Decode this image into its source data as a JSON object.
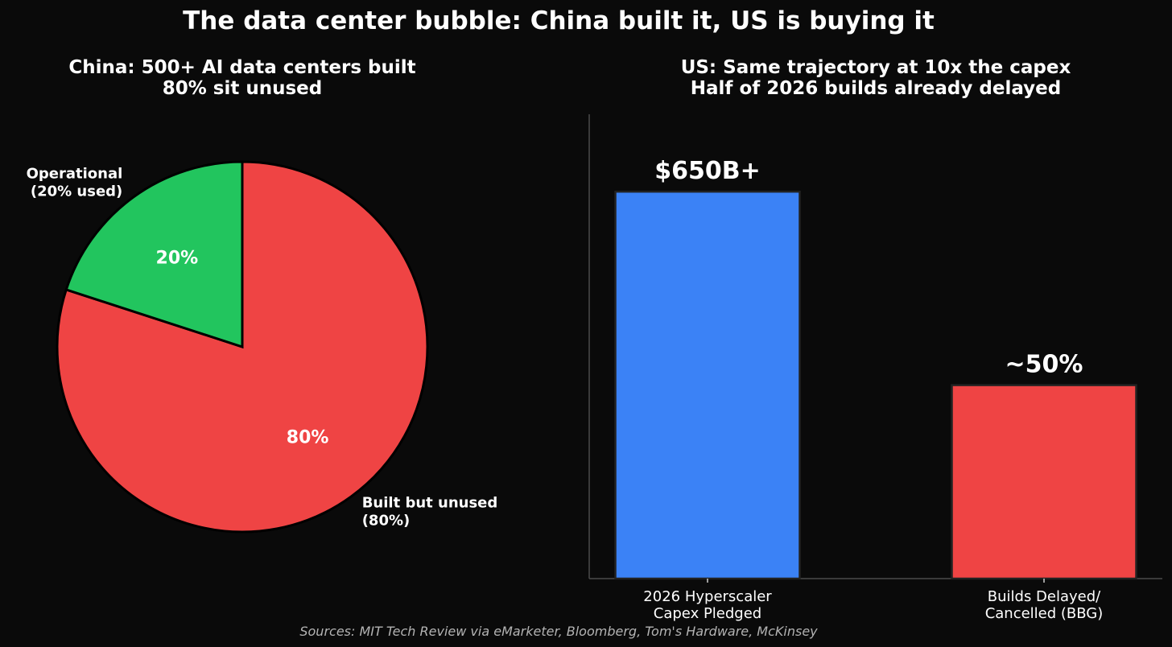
{
  "title": "The data center bubble: China built it, US is buying it",
  "source_note": "Sources: MIT Tech Review via eMarketer, Bloomberg, Tom's Hardware, McKinsey",
  "colors": {
    "background": "#0a0a0a",
    "green": "#22c55e",
    "red": "#ef4444",
    "blue": "#3b82f6",
    "axis": "#4a4a4a"
  },
  "chart_data": [
    {
      "type": "pie",
      "title_lines": [
        "China: 500+ AI data centers built",
        "80% sit unused"
      ],
      "start_angle_deg": 90,
      "direction": "clockwise",
      "slices": [
        {
          "label_lines": [
            "Built but unused",
            "(80%)"
          ],
          "value": 80,
          "pct_label": "80%",
          "color": "#ef4444"
        },
        {
          "label_lines": [
            "Operational",
            "(20% used)"
          ],
          "value": 20,
          "pct_label": "20%",
          "color": "#22c55e"
        }
      ]
    },
    {
      "type": "bar",
      "title_lines": [
        "US: Same trajectory at 10x the capex",
        "Half of 2026 builds already delayed"
      ],
      "categories": [
        {
          "label_lines": [
            "2026 Hyperscaler",
            "Capex Pledged"
          ]
        },
        {
          "label_lines": [
            "Builds Delayed/",
            "Cancelled (BBG)"
          ]
        }
      ],
      "values": [
        100,
        50
      ],
      "value_labels": [
        "$650B+",
        "~50%"
      ],
      "colors": [
        "#3b82f6",
        "#ef4444"
      ],
      "ylim": [
        0,
        120
      ],
      "show_y_ticks": false,
      "grid": false
    }
  ]
}
